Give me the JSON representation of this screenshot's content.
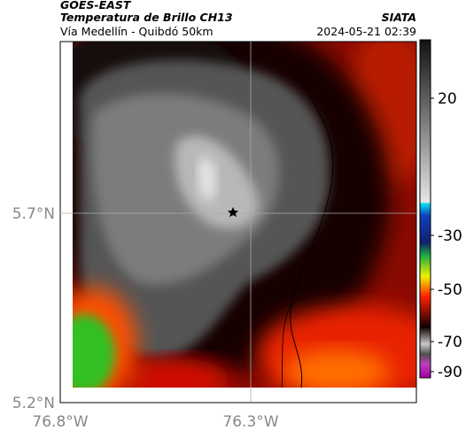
{
  "header": {
    "source": "GOES-EAST",
    "title": "Temperatura de Brillo CH13",
    "subtitle": "Vía Medellín - Quibdó 50km",
    "brand": "SIATA",
    "timestamp": "2024-05-21 02:39"
  },
  "axes": {
    "y_labels": [
      "5.7°N",
      "5.2°N"
    ],
    "x_labels": [
      "76.8°W",
      "76.3°W"
    ]
  },
  "colorbar": {
    "ticks": [
      20,
      -30,
      -50,
      -70,
      -90
    ]
  }
}
